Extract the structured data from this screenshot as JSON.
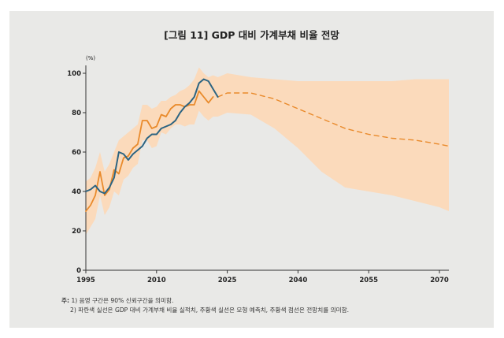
{
  "chart_data": {
    "type": "line",
    "title": "[그림 11] GDP 대비 가계부채 비율 전망",
    "ylabel": "(%)",
    "xlabel": "",
    "xlim": [
      1995,
      2072
    ],
    "ylim": [
      0,
      100
    ],
    "x_ticks": [
      1995,
      2010,
      2025,
      2040,
      2055,
      2070
    ],
    "y_ticks": [
      0,
      20,
      40,
      60,
      80,
      100
    ],
    "colors": {
      "actual": "#2c6482",
      "model": "#e98a2b",
      "band": "#fcd9b8",
      "axis": "#333333"
    },
    "series": [
      {
        "name": "실적치",
        "style": "solid",
        "x": [
          1995,
          1996,
          1997,
          1998,
          1999,
          2000,
          2001,
          2002,
          2003,
          2004,
          2005,
          2006,
          2007,
          2008,
          2009,
          2010,
          2011,
          2012,
          2013,
          2014,
          2015,
          2016,
          2017,
          2018,
          2019,
          2020,
          2021,
          2022,
          2023
        ],
        "values": [
          40,
          41,
          43,
          40,
          39,
          42,
          47,
          60,
          59,
          56,
          59,
          61,
          63,
          67,
          69,
          69,
          72,
          73,
          74,
          76,
          80,
          83,
          85,
          88,
          95,
          97,
          96,
          92,
          88
        ]
      },
      {
        "name": "모형 예측치",
        "style": "solid",
        "x": [
          1995,
          1996,
          1997,
          1998,
          1999,
          2000,
          2001,
          2002,
          2003,
          2004,
          2005,
          2006,
          2007,
          2008,
          2009,
          2010,
          2011,
          2012,
          2013,
          2014,
          2015,
          2016,
          2017,
          2018,
          2019,
          2020,
          2021,
          2022
        ],
        "values": [
          30,
          33,
          38,
          50,
          38,
          41,
          51,
          49,
          57,
          58,
          62,
          64,
          76,
          76,
          72,
          73,
          79,
          78,
          82,
          84,
          84,
          83,
          84,
          84,
          91,
          88,
          85,
          88
        ]
      },
      {
        "name": "전망치",
        "style": "dashed",
        "x": [
          2023,
          2025,
          2030,
          2035,
          2040,
          2045,
          2050,
          2055,
          2060,
          2065,
          2070,
          2072
        ],
        "values": [
          88,
          90,
          90,
          87,
          82,
          77,
          72,
          69,
          67,
          66,
          64,
          63
        ]
      }
    ],
    "band": {
      "name": "90% 신뢰구간",
      "x": [
        1995,
        1996,
        1997,
        1998,
        1999,
        2000,
        2001,
        2002,
        2003,
        2004,
        2005,
        2006,
        2007,
        2008,
        2009,
        2010,
        2011,
        2012,
        2013,
        2014,
        2015,
        2016,
        2017,
        2018,
        2019,
        2020,
        2021,
        2022,
        2023,
        2025,
        2030,
        2035,
        2040,
        2045,
        2050,
        2055,
        2060,
        2065,
        2070,
        2072
      ],
      "upper": [
        45,
        47,
        52,
        60,
        50,
        54,
        60,
        66,
        68,
        70,
        72,
        74,
        84,
        84,
        82,
        83,
        86,
        86,
        88,
        89,
        91,
        92,
        94,
        97,
        103,
        100,
        98,
        99,
        98,
        100,
        98,
        97,
        96,
        96,
        96,
        96,
        96,
        97,
        97,
        97
      ],
      "lower": [
        18,
        22,
        26,
        38,
        28,
        32,
        40,
        38,
        46,
        48,
        52,
        54,
        66,
        66,
        62,
        63,
        70,
        69,
        72,
        74,
        74,
        73,
        74,
        74,
        81,
        78,
        76,
        78,
        78,
        80,
        79,
        72,
        62,
        50,
        42,
        40,
        38,
        35,
        32,
        30
      ]
    }
  },
  "notes": {
    "prefix": "주:",
    "items": [
      "1) 음영 구간은 90% 신뢰구간을 의미함.",
      "2) 파란색 실선은 GDP 대비 가계부채 비율 실적치, 주황색 실선은 모형 예측치, 주황색 점선은 전망치를 의미함."
    ]
  }
}
